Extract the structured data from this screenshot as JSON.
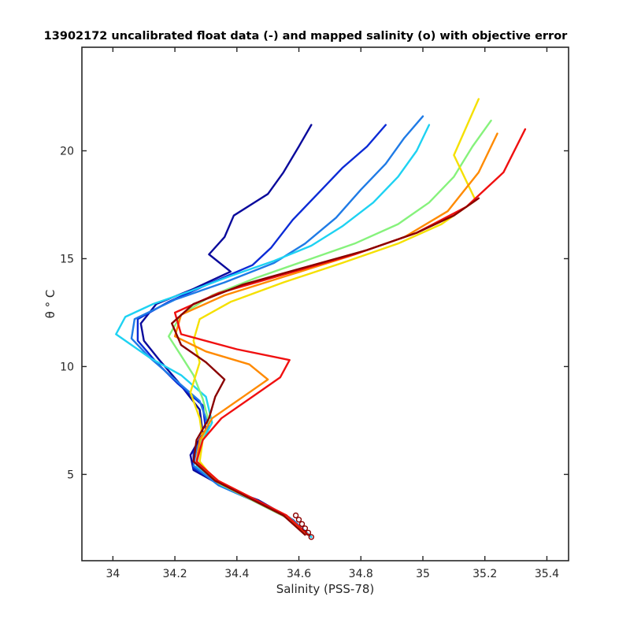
{
  "chart_data": {
    "type": "line",
    "title": "13902172 uncalibrated float data (-) and mapped salinity (o) with objective error",
    "xlabel": "Salinity (PSS-78)",
    "ylabel": "θ ° C",
    "xlim": [
      33.9,
      35.47
    ],
    "ylim": [
      1.0,
      24.8
    ],
    "xticks": [
      34.0,
      34.2,
      34.4,
      34.6,
      34.8,
      35.0,
      35.2,
      35.4
    ],
    "xticklabels": [
      "34",
      "34.2",
      "34.4",
      "34.6",
      "34.8",
      "35",
      "35.2",
      "35.4"
    ],
    "yticks": [
      5,
      10,
      15,
      20
    ],
    "yticklabels": [
      "5",
      "10",
      "15",
      "20"
    ],
    "grid": false,
    "legend": "none",
    "colormap": "jet, early profiles blue to late profiles dark red",
    "line_color_stops": [
      "#00008f",
      "#0000ff",
      "#0080ff",
      "#00ffff",
      "#80ff80",
      "#ffff00",
      "#ff8000",
      "#ff0000",
      "#800000"
    ],
    "mapped_salinity_color": "#8b0000",
    "series": [
      {
        "name": "",
        "color": "#0a0a9c",
        "values": [
          [
            34.64,
            2.1
          ],
          [
            34.58,
            2.9
          ],
          [
            34.47,
            3.8
          ],
          [
            34.36,
            4.4
          ],
          [
            34.26,
            5.2
          ],
          [
            34.25,
            5.9
          ],
          [
            34.29,
            6.9
          ],
          [
            34.28,
            8.0
          ],
          [
            34.21,
            9.3
          ],
          [
            34.15,
            10.3
          ],
          [
            34.1,
            11.2
          ],
          [
            34.09,
            12.0
          ],
          [
            34.14,
            12.9
          ],
          [
            34.26,
            13.6
          ],
          [
            34.38,
            14.4
          ],
          [
            34.31,
            15.2
          ],
          [
            34.36,
            16.0
          ],
          [
            34.39,
            17.0
          ],
          [
            34.5,
            18.0
          ],
          [
            34.55,
            19.0
          ],
          [
            34.6,
            20.2
          ],
          [
            34.64,
            21.2
          ]
        ]
      },
      {
        "name": "",
        "color": "#0b2bd6",
        "values": [
          [
            34.64,
            2.1
          ],
          [
            34.57,
            3.0
          ],
          [
            34.46,
            3.8
          ],
          [
            34.35,
            4.5
          ],
          [
            34.26,
            5.3
          ],
          [
            34.26,
            6.0
          ],
          [
            34.3,
            7.0
          ],
          [
            34.29,
            8.2
          ],
          [
            34.21,
            9.2
          ],
          [
            34.14,
            10.2
          ],
          [
            34.08,
            11.2
          ],
          [
            34.08,
            12.2
          ],
          [
            34.18,
            13.0
          ],
          [
            34.32,
            13.9
          ],
          [
            34.45,
            14.7
          ],
          [
            34.51,
            15.5
          ],
          [
            34.58,
            16.8
          ],
          [
            34.66,
            18.0
          ],
          [
            34.74,
            19.2
          ],
          [
            34.82,
            20.2
          ],
          [
            34.88,
            21.2
          ]
        ]
      },
      {
        "name": "",
        "color": "#1f7be6",
        "values": [
          [
            34.64,
            2.1
          ],
          [
            34.56,
            3.0
          ],
          [
            34.45,
            3.8
          ],
          [
            34.34,
            4.5
          ],
          [
            34.26,
            5.4
          ],
          [
            34.27,
            6.2
          ],
          [
            34.31,
            7.2
          ],
          [
            34.28,
            8.4
          ],
          [
            34.2,
            9.4
          ],
          [
            34.12,
            10.4
          ],
          [
            34.06,
            11.3
          ],
          [
            34.07,
            12.2
          ],
          [
            34.2,
            13.1
          ],
          [
            34.36,
            13.9
          ],
          [
            34.52,
            14.8
          ],
          [
            34.62,
            15.7
          ],
          [
            34.72,
            16.9
          ],
          [
            34.8,
            18.2
          ],
          [
            34.88,
            19.4
          ],
          [
            34.94,
            20.6
          ],
          [
            35.0,
            21.6
          ]
        ]
      },
      {
        "name": "",
        "color": "#1ed2f2",
        "values": [
          [
            34.64,
            2.1
          ],
          [
            34.57,
            3.0
          ],
          [
            34.46,
            3.8
          ],
          [
            34.35,
            4.5
          ],
          [
            34.27,
            5.4
          ],
          [
            34.28,
            6.3
          ],
          [
            34.32,
            7.4
          ],
          [
            34.3,
            8.6
          ],
          [
            34.22,
            9.6
          ],
          [
            34.12,
            10.4
          ],
          [
            34.01,
            11.5
          ],
          [
            34.04,
            12.3
          ],
          [
            34.13,
            12.9
          ],
          [
            34.25,
            13.5
          ],
          [
            34.38,
            14.2
          ],
          [
            34.52,
            14.9
          ],
          [
            34.64,
            15.6
          ],
          [
            34.74,
            16.5
          ],
          [
            34.84,
            17.6
          ],
          [
            34.92,
            18.8
          ],
          [
            34.98,
            20.0
          ],
          [
            35.02,
            21.2
          ]
        ]
      },
      {
        "name": "",
        "color": "#86f27c",
        "values": [
          [
            34.63,
            2.2
          ],
          [
            34.56,
            3.0
          ],
          [
            34.45,
            3.8
          ],
          [
            34.34,
            4.6
          ],
          [
            34.27,
            5.5
          ],
          [
            34.28,
            6.4
          ],
          [
            34.31,
            7.4
          ],
          [
            34.29,
            8.5
          ],
          [
            34.26,
            9.6
          ],
          [
            34.22,
            10.5
          ],
          [
            34.18,
            11.4
          ],
          [
            34.22,
            12.4
          ],
          [
            34.32,
            13.3
          ],
          [
            34.46,
            14.1
          ],
          [
            34.62,
            14.9
          ],
          [
            34.78,
            15.7
          ],
          [
            34.92,
            16.6
          ],
          [
            35.02,
            17.6
          ],
          [
            35.1,
            18.8
          ],
          [
            35.16,
            20.2
          ],
          [
            35.22,
            21.4
          ]
        ]
      },
      {
        "name": "",
        "color": "#f5e000",
        "values": [
          [
            34.63,
            2.2
          ],
          [
            34.55,
            3.1
          ],
          [
            34.44,
            3.9
          ],
          [
            34.33,
            4.7
          ],
          [
            34.28,
            5.6
          ],
          [
            34.29,
            6.6
          ],
          [
            34.28,
            7.6
          ],
          [
            34.25,
            8.8
          ],
          [
            34.28,
            10.2
          ],
          [
            34.26,
            11.2
          ],
          [
            34.28,
            12.2
          ],
          [
            34.38,
            13.0
          ],
          [
            34.55,
            13.9
          ],
          [
            34.74,
            14.8
          ],
          [
            34.92,
            15.7
          ],
          [
            35.06,
            16.6
          ],
          [
            35.17,
            17.7
          ],
          [
            35.1,
            19.8
          ],
          [
            35.18,
            22.4
          ]
        ]
      },
      {
        "name": "",
        "color": "#ff8a00",
        "values": [
          [
            34.63,
            2.2
          ],
          [
            34.56,
            3.1
          ],
          [
            34.45,
            3.9
          ],
          [
            34.34,
            4.7
          ],
          [
            34.27,
            5.6
          ],
          [
            34.28,
            6.6
          ],
          [
            34.32,
            7.6
          ],
          [
            34.42,
            8.6
          ],
          [
            34.5,
            9.4
          ],
          [
            34.44,
            10.1
          ],
          [
            34.3,
            10.7
          ],
          [
            34.2,
            11.4
          ],
          [
            34.22,
            12.4
          ],
          [
            34.36,
            13.3
          ],
          [
            34.56,
            14.2
          ],
          [
            34.76,
            15.1
          ],
          [
            34.94,
            16.0
          ],
          [
            35.08,
            17.2
          ],
          [
            35.18,
            19.0
          ],
          [
            35.24,
            20.8
          ]
        ]
      },
      {
        "name": "",
        "color": "#f01010",
        "values": [
          [
            34.63,
            2.2
          ],
          [
            34.56,
            3.1
          ],
          [
            34.45,
            3.9
          ],
          [
            34.34,
            4.7
          ],
          [
            34.27,
            5.6
          ],
          [
            34.29,
            6.6
          ],
          [
            34.35,
            7.6
          ],
          [
            34.46,
            8.7
          ],
          [
            34.54,
            9.5
          ],
          [
            34.57,
            10.3
          ],
          [
            34.4,
            10.8
          ],
          [
            34.22,
            11.5
          ],
          [
            34.2,
            12.5
          ],
          [
            34.34,
            13.4
          ],
          [
            34.56,
            14.3
          ],
          [
            34.78,
            15.2
          ],
          [
            34.98,
            16.2
          ],
          [
            35.14,
            17.4
          ],
          [
            35.26,
            19.0
          ],
          [
            35.33,
            21.0
          ]
        ]
      },
      {
        "name": "",
        "color": "#8a0000",
        "values": [
          [
            34.62,
            2.2
          ],
          [
            34.55,
            3.1
          ],
          [
            34.44,
            3.9
          ],
          [
            34.33,
            4.7
          ],
          [
            34.26,
            5.6
          ],
          [
            34.27,
            6.6
          ],
          [
            34.31,
            7.6
          ],
          [
            34.33,
            8.6
          ],
          [
            34.36,
            9.4
          ],
          [
            34.3,
            10.2
          ],
          [
            34.22,
            11.0
          ],
          [
            34.19,
            12.0
          ],
          [
            34.26,
            12.9
          ],
          [
            34.42,
            13.8
          ],
          [
            34.62,
            14.6
          ],
          [
            34.82,
            15.4
          ],
          [
            34.98,
            16.2
          ],
          [
            35.1,
            17.0
          ],
          [
            35.18,
            17.8
          ]
        ]
      }
    ],
    "mapped_salinity_markers": [
      [
        34.64,
        2.1
      ],
      [
        34.63,
        2.3
      ],
      [
        34.62,
        2.5
      ],
      [
        34.61,
        2.7
      ],
      [
        34.6,
        2.9
      ],
      [
        34.59,
        3.1
      ]
    ]
  }
}
